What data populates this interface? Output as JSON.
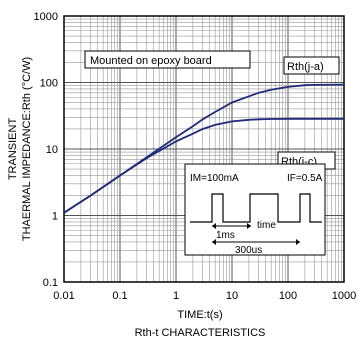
{
  "chart_data": {
    "type": "line",
    "title": "Rth-t CHARACTERISTICS",
    "xlabel": "TIME:t(s)",
    "ylabel_line1": "TRANSIENT",
    "ylabel_line2": "THAERMAL IMPEDANCE:Rth (°C/W)",
    "x_scale": "log",
    "y_scale": "log",
    "xlim": [
      0.01,
      1000
    ],
    "ylim": [
      0.1,
      1000
    ],
    "x_ticks": [
      {
        "value": 0.01,
        "label": "0.01"
      },
      {
        "value": 0.1,
        "label": "0.1"
      },
      {
        "value": 1,
        "label": "1"
      },
      {
        "value": 10,
        "label": "10"
      },
      {
        "value": 100,
        "label": "100"
      },
      {
        "value": 1000,
        "label": "1000"
      }
    ],
    "y_ticks": [
      {
        "value": 0.1,
        "label": "0.1"
      },
      {
        "value": 1,
        "label": "1"
      },
      {
        "value": 10,
        "label": "10"
      },
      {
        "value": 100,
        "label": "100"
      },
      {
        "value": 1000,
        "label": "1000"
      }
    ],
    "grid": true,
    "series": [
      {
        "name": "Rth(j-a)",
        "color": "#1f2a7a",
        "x": [
          0.01,
          0.03,
          0.1,
          0.3,
          1,
          2,
          3,
          5,
          10,
          20,
          30,
          50,
          100,
          200,
          300,
          1000
        ],
        "y": [
          1.1,
          2.0,
          4.0,
          7.5,
          15,
          22,
          28,
          36,
          50,
          62,
          70,
          78,
          86,
          91,
          92,
          93
        ]
      },
      {
        "name": "Rth(j-c)",
        "color": "#1f2a7a",
        "x": [
          0.01,
          0.03,
          0.1,
          0.3,
          1,
          2,
          3,
          5,
          10,
          20,
          30,
          50,
          100,
          200,
          300,
          1000
        ],
        "y": [
          1.1,
          2.0,
          4.0,
          7.3,
          13,
          17,
          20,
          23,
          26,
          27.5,
          28,
          28.3,
          28.5,
          28.5,
          28.5,
          28.5
        ]
      }
    ],
    "annotations": {
      "mounted": "Mounted on epoxy board",
      "rth_ja": "Rth(j-a)",
      "rth_jc": "Rth(j-c)",
      "im": "IM=100mA",
      "if": "IF=0.5A",
      "t1": "1ms",
      "time": "time",
      "period": "300us"
    }
  }
}
